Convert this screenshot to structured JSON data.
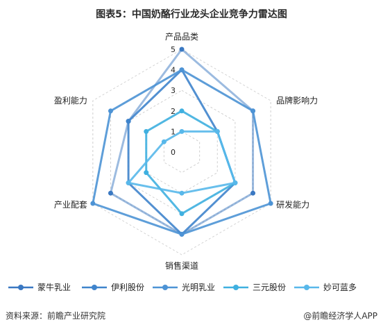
{
  "title": "图表5：中国奶酪行业龙头企业竞争力雷达图",
  "footer": {
    "source": "资料来源：前瞻产业研究院",
    "brand": "@前瞻经济学人APP"
  },
  "chart_data": {
    "type": "radar",
    "axes": [
      "产品品类",
      "品牌影响力",
      "研发能力",
      "销售渠道",
      "产业配套",
      "盈利能力"
    ],
    "ticks": [
      0,
      1,
      2,
      3,
      4,
      5
    ],
    "range": [
      0,
      5
    ],
    "series": [
      {
        "name": "蒙牛乳业",
        "color": "#3a78c2",
        "values": [
          5,
          4,
          4,
          4,
          4,
          3
        ]
      },
      {
        "name": "伊利股份",
        "color": "#3f84cc",
        "values": [
          4,
          2,
          3,
          4,
          3,
          3
        ]
      },
      {
        "name": "光明乳业",
        "color": "#4d93d5",
        "values": [
          4,
          4,
          5,
          4,
          5,
          4
        ]
      },
      {
        "name": "三元股份",
        "color": "#3fb0e0",
        "values": [
          2,
          2,
          3,
          3,
          2,
          2
        ]
      },
      {
        "name": "妙可蓝多",
        "color": "#58b8ea",
        "values": [
          1,
          2,
          3,
          2,
          3,
          1
        ]
      }
    ]
  }
}
